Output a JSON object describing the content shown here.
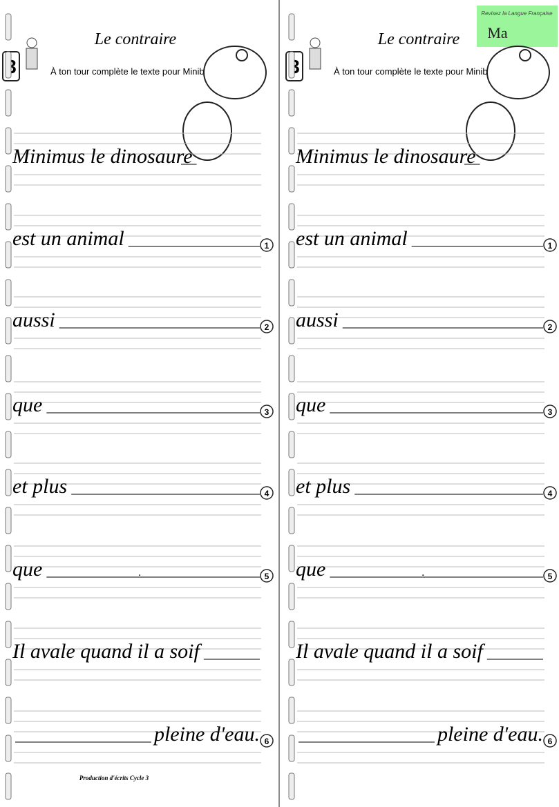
{
  "header": {
    "title": "Le contraire",
    "step": "3",
    "instruction": "À ton tour complète le texte pour Minibus."
  },
  "rows": [
    {
      "text": "Minimus le dinosaure"
    },
    {
      "text": "est un animal",
      "number": "1"
    },
    {
      "text": "aussi",
      "number": "2"
    },
    {
      "text": "que",
      "number": "3"
    },
    {
      "text": "et plus",
      "number": "4"
    },
    {
      "text": "que",
      "number": "5",
      "end": "."
    },
    {
      "text": "Il avale quand il a soif"
    },
    {
      "text": "pleine d'eau.",
      "number": "6"
    }
  ],
  "footer": "Production d'écrits Cycle 3",
  "logo": {
    "title": "Revisez la Langue Française",
    "text": "Ma"
  }
}
